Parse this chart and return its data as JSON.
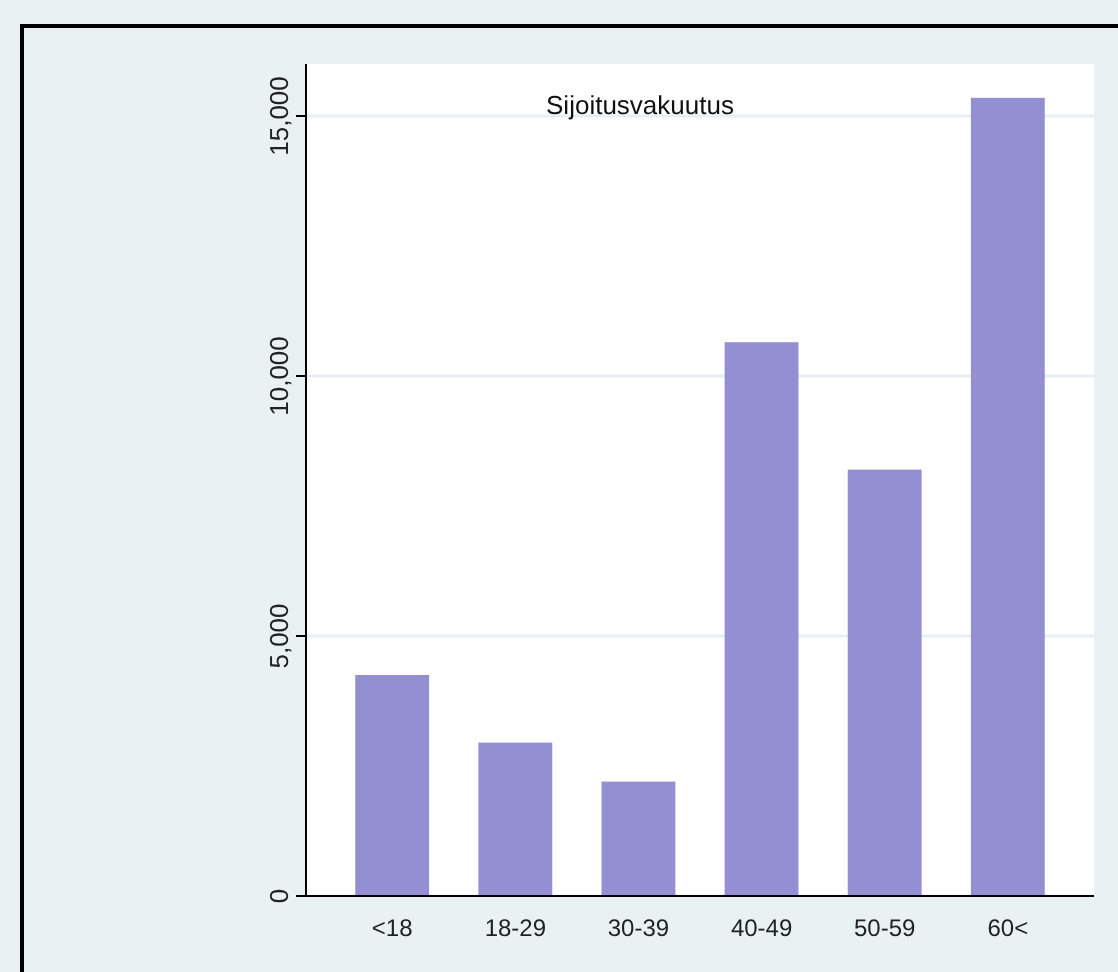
{
  "chart_data": {
    "type": "bar",
    "title": "Sijoitusvakuutus",
    "categories": [
      "<18",
      "18-29",
      "30-39",
      "40-49",
      "50-59",
      "60<"
    ],
    "values": [
      4250,
      2950,
      2200,
      10650,
      8200,
      15350
    ],
    "color": "#948fd2",
    "ylim": [
      0,
      16000
    ],
    "yticks": [
      0,
      {
        "value": 5000,
        "label": "5,000"
      },
      {
        "value": 10000,
        "label": "10,000"
      },
      {
        "value": 15000,
        "label": "15,000"
      }
    ],
    "grid": "y"
  }
}
